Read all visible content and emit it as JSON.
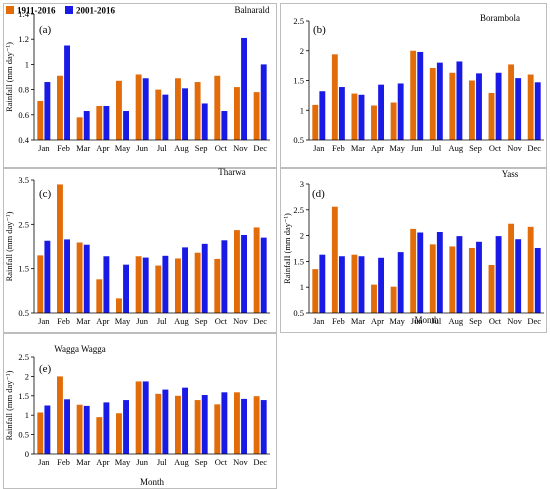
{
  "legend": {
    "entries": [
      {
        "name": "1911-2016",
        "color": "#E36C0A"
      },
      {
        "name": "2001-2016",
        "color": "#1A1AE6"
      }
    ],
    "placement": "top-left"
  },
  "chart_data": [
    {
      "type": "bar",
      "panel": "(a)",
      "title": "Balnarald",
      "xlabel": "",
      "ylabel": "Rainfall (mm day⁻¹)",
      "ylim": [
        0.4,
        1.4
      ],
      "yticks": [
        "0.4",
        "0.6",
        "0.8",
        "1",
        "1.2",
        "1.4"
      ],
      "categories": [
        "Jan",
        "Feb",
        "Mar",
        "Apr",
        "May",
        "Jun",
        "Jul",
        "Aug",
        "Sep",
        "Oct",
        "Nov",
        "Dec"
      ],
      "series": [
        {
          "name": "1911-2016",
          "values": [
            0.71,
            0.91,
            0.58,
            0.67,
            0.87,
            0.92,
            0.8,
            0.89,
            0.86,
            0.91,
            0.82,
            0.78
          ]
        },
        {
          "name": "2001-2016",
          "values": [
            0.86,
            1.15,
            0.63,
            0.67,
            0.63,
            0.89,
            0.76,
            0.81,
            0.69,
            0.63,
            1.21,
            1.0
          ]
        }
      ]
    },
    {
      "type": "bar",
      "panel": "(b)",
      "title": "Borambola",
      "xlabel": "",
      "ylabel": "",
      "ylim": [
        0.5,
        2.5
      ],
      "yticks": [
        "0.5",
        "1",
        "1.5",
        "2",
        "2.5"
      ],
      "categories": [
        "Jan",
        "Feb",
        "Mar",
        "Apr",
        "May",
        "Jun",
        "Jul",
        "Aug",
        "Sep",
        "Oct",
        "Nov",
        "Dec"
      ],
      "series": [
        {
          "name": "1911-2016",
          "values": [
            1.09,
            1.94,
            1.28,
            1.08,
            1.13,
            2.0,
            1.71,
            1.63,
            1.5,
            1.29,
            1.77,
            1.6
          ]
        },
        {
          "name": "2001-2016",
          "values": [
            1.32,
            1.39,
            1.26,
            1.43,
            1.45,
            1.98,
            1.8,
            1.82,
            1.62,
            1.63,
            1.54,
            1.47
          ]
        }
      ]
    },
    {
      "type": "bar",
      "panel": "(c)",
      "title": "Tharwa",
      "xlabel": "",
      "ylabel": "Rainfall (mm day⁻¹)",
      "ylim": [
        0.5,
        3.5
      ],
      "yticks": [
        "0.5",
        "1.5",
        "2.5",
        "3.5"
      ],
      "categories": [
        "Jan",
        "Feb",
        "Mar",
        "Apr",
        "May",
        "Jun",
        "Jul",
        "Aug",
        "Sep",
        "Oct",
        "Nov",
        "Dec"
      ],
      "series": [
        {
          "name": "1911-2016",
          "values": [
            1.8,
            3.4,
            2.09,
            1.26,
            0.83,
            1.78,
            1.57,
            1.73,
            1.86,
            1.72,
            2.37,
            2.43
          ]
        },
        {
          "name": "2001-2016",
          "values": [
            2.13,
            2.16,
            2.04,
            1.78,
            1.59,
            1.75,
            1.79,
            1.98,
            2.06,
            2.14,
            2.26,
            2.2
          ]
        }
      ]
    },
    {
      "type": "bar",
      "panel": "(d)",
      "title": "Yass",
      "xlabel": "Month",
      "ylabel": "RainfaII (mm day⁻¹)",
      "ylim": [
        0.5,
        3.0
      ],
      "yticks": [
        "0.5",
        "1",
        "1.5",
        "2",
        "2.5",
        "3"
      ],
      "categories": [
        "Jan",
        "Feb",
        "Mar",
        "Apr",
        "May",
        "Jun",
        "Jul",
        "Aug",
        "Sep",
        "Oct",
        "Nov",
        "Dec"
      ],
      "series": [
        {
          "name": "1911-2016",
          "values": [
            1.35,
            2.56,
            1.63,
            1.05,
            1.01,
            2.13,
            1.83,
            1.79,
            1.76,
            1.43,
            2.23,
            2.17
          ]
        },
        {
          "name": "2001-2016",
          "values": [
            1.63,
            1.6,
            1.6,
            1.57,
            1.68,
            2.06,
            2.07,
            1.99,
            1.88,
            1.99,
            1.93,
            1.76
          ]
        }
      ]
    },
    {
      "type": "bar",
      "panel": "(e)",
      "title": "Wagga Wagga",
      "xlabel": "Month",
      "ylabel": "Rainfall (mm day⁻¹)",
      "ylim": [
        0,
        2.5
      ],
      "yticks": [
        "0",
        "0.5",
        "1",
        "1.5",
        "2",
        "2.5"
      ],
      "categories": [
        "Jan",
        "Feb",
        "Mar",
        "Apr",
        "May",
        "Jun",
        "Jul",
        "Aug",
        "Sep",
        "Oct",
        "Nov",
        "Dec"
      ],
      "series": [
        {
          "name": "1911-2016",
          "values": [
            1.07,
            2.0,
            1.27,
            0.95,
            1.05,
            1.87,
            1.55,
            1.5,
            1.39,
            1.28,
            1.59,
            1.49
          ]
        },
        {
          "name": "2001-2016",
          "values": [
            1.25,
            1.41,
            1.24,
            1.33,
            1.39,
            1.87,
            1.66,
            1.71,
            1.52,
            1.59,
            1.42,
            1.39
          ]
        }
      ]
    }
  ]
}
